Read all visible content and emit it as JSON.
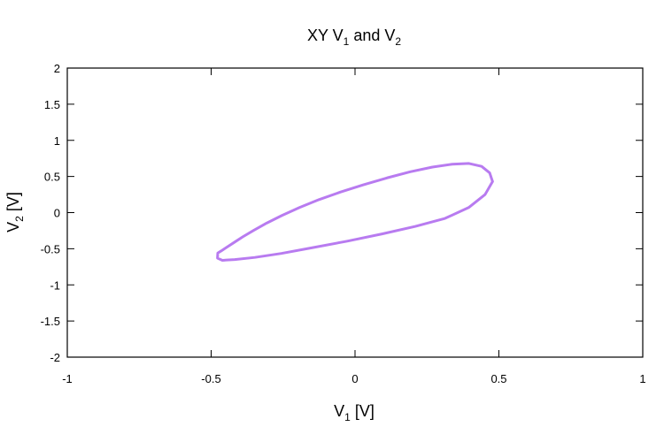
{
  "chart_data": {
    "type": "line",
    "title": "XY V",
    "title_sub_1": "1",
    "title_mid": " and V",
    "title_sub_2": "2",
    "xlabel_main": "V",
    "xlabel_sub": "1",
    "xlabel_unit": " [V]",
    "ylabel_main": "V",
    "ylabel_sub": "2",
    "ylabel_unit": " [V]",
    "xlim": [
      -1,
      1
    ],
    "ylim": [
      -2,
      2
    ],
    "x_ticks": [
      -1,
      -0.5,
      0,
      0.5,
      1
    ],
    "x_tick_labels": [
      "-1",
      "-0.5",
      "0",
      "0.5",
      "1"
    ],
    "y_ticks": [
      -2,
      -1.5,
      -1,
      -0.5,
      0,
      0.5,
      1,
      1.5,
      2
    ],
    "y_tick_labels": [
      "-2",
      "-1.5",
      "-1",
      "-0.5",
      "0",
      "0.5",
      "1",
      "1.5",
      "2"
    ],
    "grid": false,
    "series": [
      {
        "color": "#b87bf0",
        "x": [
          0.478,
          0.468,
          0.44,
          0.396,
          0.338,
          0.269,
          0.192,
          0.111,
          0.029,
          -0.05,
          -0.125,
          -0.193,
          -0.254,
          -0.307,
          -0.352,
          -0.39,
          -0.421,
          -0.446,
          -0.465,
          -0.477,
          -0.478,
          -0.461,
          -0.418,
          -0.348,
          -0.256,
          -0.147,
          -0.027,
          0.094,
          0.21,
          0.313,
          0.395,
          0.452,
          0.478
        ],
        "y": [
          0.43,
          0.55,
          0.64,
          0.68,
          0.67,
          0.63,
          0.565,
          0.48,
          0.385,
          0.285,
          0.18,
          0.07,
          -0.04,
          -0.145,
          -0.245,
          -0.335,
          -0.415,
          -0.48,
          -0.53,
          -0.56,
          -0.63,
          -0.66,
          -0.65,
          -0.62,
          -0.565,
          -0.485,
          -0.395,
          -0.295,
          -0.19,
          -0.08,
          0.07,
          0.25,
          0.43
        ]
      }
    ]
  }
}
